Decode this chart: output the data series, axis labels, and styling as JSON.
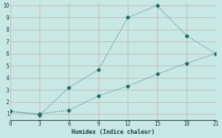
{
  "xlabel": "Humidex (Indice chaleur)",
  "background_color": "#c8e8e4",
  "grid_color_major": "#b8d4d0",
  "grid_color_minor": "#d8eeea",
  "line_color": "#1a7068",
  "line1_x": [
    0,
    3,
    6,
    9,
    12,
    15,
    18,
    21
  ],
  "line1_y": [
    1.2,
    0.9,
    3.2,
    4.65,
    9.0,
    10.0,
    7.5,
    6.0
  ],
  "line2_x": [
    0,
    3,
    6,
    9,
    12,
    15,
    18,
    21
  ],
  "line2_y": [
    1.2,
    1.0,
    1.3,
    2.5,
    3.3,
    4.3,
    5.2,
    6.0
  ],
  "xlim": [
    0,
    21
  ],
  "ylim": [
    0.5,
    10.2
  ],
  "xticks": [
    0,
    3,
    6,
    9,
    12,
    15,
    18,
    21
  ],
  "yticks": [
    1,
    2,
    3,
    4,
    5,
    6,
    7,
    8,
    9,
    10
  ]
}
